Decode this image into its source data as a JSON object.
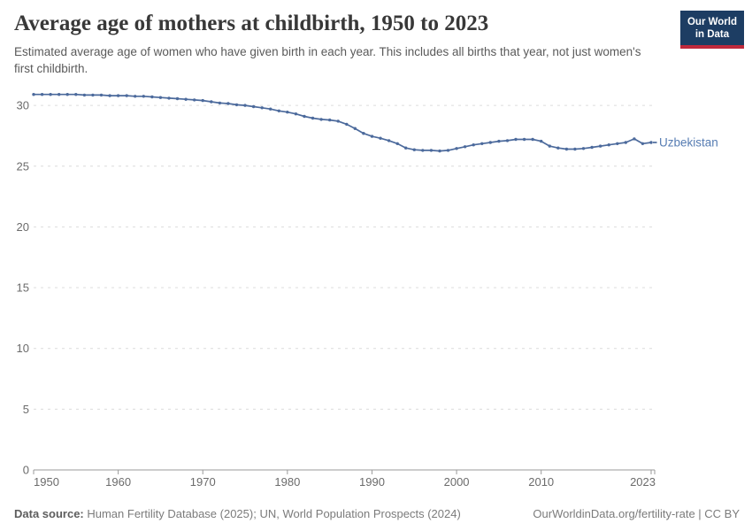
{
  "header": {
    "title": "Average age of mothers at childbirth, 1950 to 2023",
    "subtitle": "Estimated average age of women who have given birth in each year. This includes all births that year, not just women's first childbirth.",
    "logo_line1": "Our World",
    "logo_line2": "in Data"
  },
  "chart_data": {
    "type": "line",
    "title": "Average age of mothers at childbirth, 1950 to 2023",
    "entity": "Uzbekistan",
    "x": [
      1950,
      1951,
      1952,
      1953,
      1954,
      1955,
      1956,
      1957,
      1958,
      1959,
      1960,
      1961,
      1962,
      1963,
      1964,
      1965,
      1966,
      1967,
      1968,
      1969,
      1970,
      1971,
      1972,
      1973,
      1974,
      1975,
      1976,
      1977,
      1978,
      1979,
      1980,
      1981,
      1982,
      1983,
      1984,
      1985,
      1986,
      1987,
      1988,
      1989,
      1990,
      1991,
      1992,
      1993,
      1994,
      1995,
      1996,
      1997,
      1998,
      1999,
      2000,
      2001,
      2002,
      2003,
      2004,
      2005,
      2006,
      2007,
      2008,
      2009,
      2010,
      2011,
      2012,
      2013,
      2014,
      2015,
      2016,
      2017,
      2018,
      2019,
      2020,
      2021,
      2022,
      2023
    ],
    "values": [
      30.9,
      30.9,
      30.9,
      30.9,
      30.9,
      30.9,
      30.85,
      30.85,
      30.85,
      30.8,
      30.8,
      30.8,
      30.75,
      30.75,
      30.7,
      30.65,
      30.6,
      30.55,
      30.5,
      30.45,
      30.4,
      30.3,
      30.2,
      30.15,
      30.05,
      30.0,
      29.9,
      29.8,
      29.7,
      29.55,
      29.45,
      29.3,
      29.1,
      28.95,
      28.85,
      28.8,
      28.7,
      28.45,
      28.1,
      27.7,
      27.45,
      27.3,
      27.1,
      26.85,
      26.5,
      26.35,
      26.3,
      26.3,
      26.25,
      26.3,
      26.45,
      26.6,
      26.75,
      26.85,
      26.95,
      27.05,
      27.1,
      27.2,
      27.2,
      27.2,
      27.05,
      26.65,
      26.5,
      26.4,
      26.4,
      26.45,
      26.55,
      26.65,
      26.75,
      26.85,
      26.95,
      27.25,
      26.85,
      26.95
    ],
    "x_ticks": [
      1950,
      1960,
      1970,
      1980,
      1990,
      2000,
      2010,
      2023
    ],
    "y_ticks": [
      0,
      5,
      10,
      15,
      20,
      25,
      30
    ],
    "xlim": [
      1950,
      2023
    ],
    "ylim": [
      0,
      31.5
    ],
    "xlabel": "",
    "ylabel": "",
    "grid": "horizontal-dashed",
    "legend_position": "end-of-line",
    "line_color": "#4C6A9C",
    "label_color": "#577db3"
  },
  "footer": {
    "source_label": "Data source:",
    "source_text": " Human Fertility Database (2025); UN, World Population Prospects (2024)",
    "right_text": "OurWorldinData.org/fertility-rate | CC BY"
  }
}
